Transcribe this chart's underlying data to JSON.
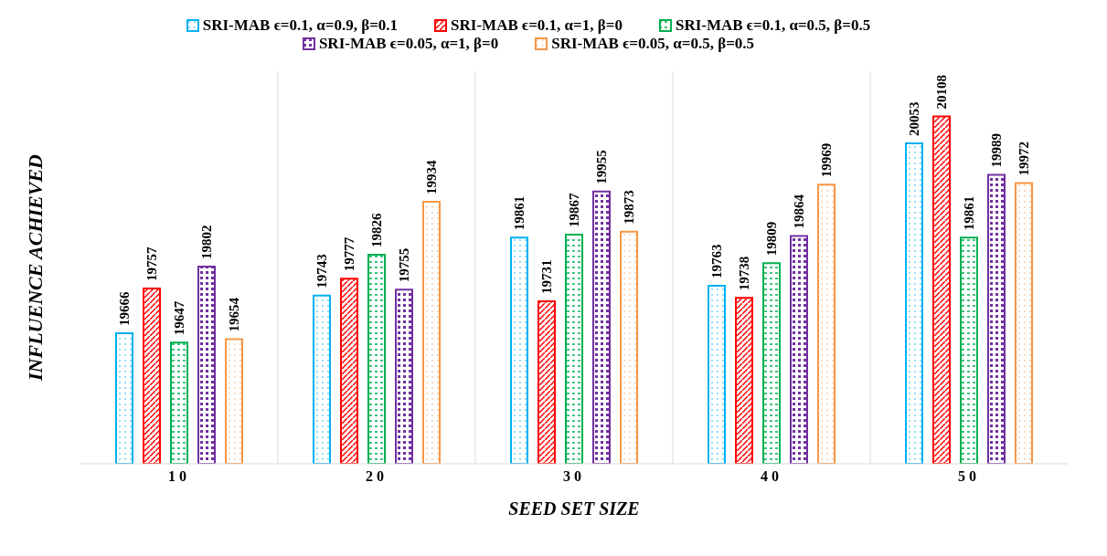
{
  "chart_data": {
    "type": "bar",
    "xlabel": "SEED SET SIZE",
    "ylabel": "INFLUENCE ACHIEVED",
    "categories": [
      "10",
      "20",
      "30",
      "40",
      "50"
    ],
    "series": [
      {
        "name": "SRI-MAB  ϵ=0.1, α=0.9, β=0.1",
        "color": "#00b0f0",
        "values": [
          19666,
          19743,
          19861,
          19763,
          20053
        ]
      },
      {
        "name": "SRI-MAB  ϵ=0.1, α=1, β=0",
        "color": "#ff0000",
        "values": [
          19757,
          19777,
          19731,
          19738,
          20108
        ]
      },
      {
        "name": "SRI-MAB  ϵ=0.1, α=0.5, β=0.5",
        "color": "#00b050",
        "values": [
          19647,
          19826,
          19867,
          19809,
          19861
        ]
      },
      {
        "name": "SRI-MAB  ϵ=0.05, α=1, β=0",
        "color": "#7030a0",
        "values": [
          19802,
          19755,
          19955,
          19864,
          19989
        ]
      },
      {
        "name": "SRI-MAB  ϵ=0.05, α=0.5, β=0.5",
        "color": "#f79646",
        "values": [
          19654,
          19934,
          19873,
          19969,
          19972
        ]
      }
    ],
    "ylim": [
      19400,
      20200
    ],
    "tick_labels": "x",
    "data_labels": true,
    "grid": "x",
    "legend": "top"
  }
}
